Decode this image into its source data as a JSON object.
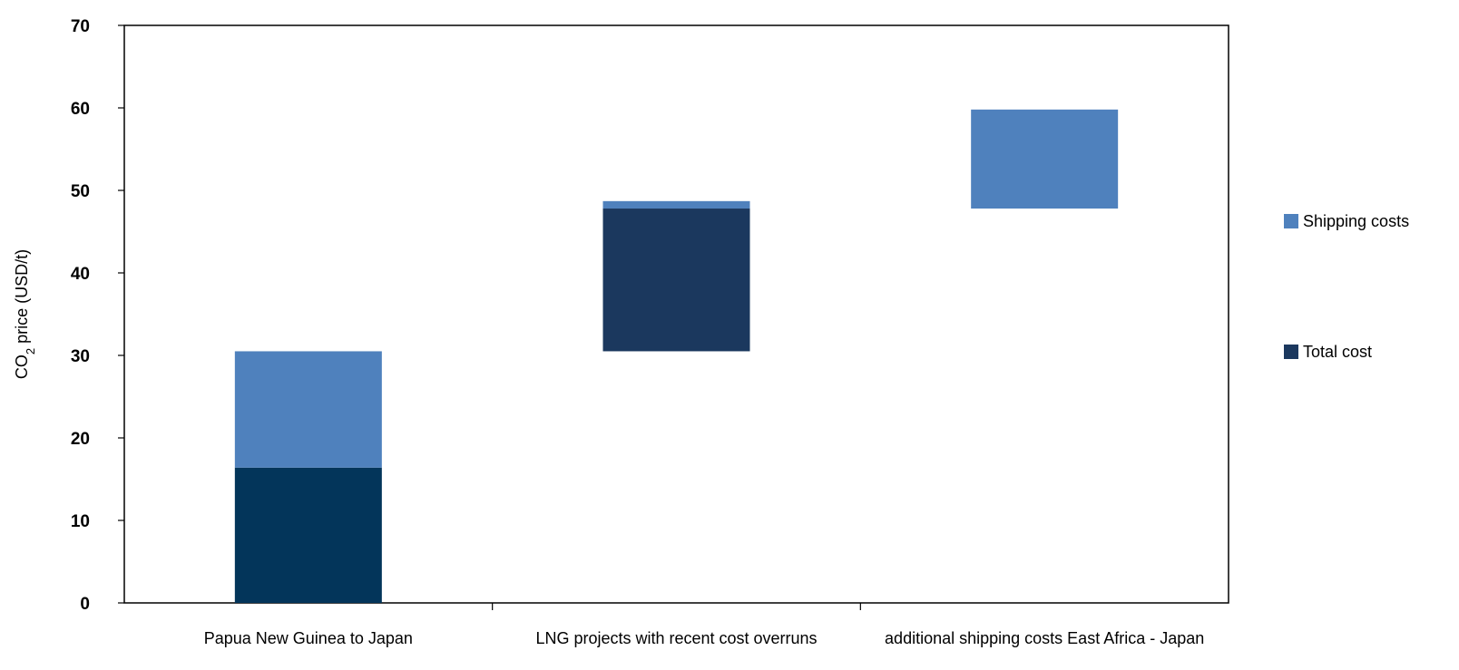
{
  "colors": {
    "shipping": "#4f81bd",
    "total_cost_primary": "#03355a",
    "total_cost_secondary": "#1b385e",
    "axis": "#000000",
    "background": "#ffffff"
  },
  "chart_data": {
    "type": "bar",
    "subtype": "waterfall-stacked",
    "title": "",
    "xlabel": "",
    "ylabel_main": "CO",
    "ylabel_sub": "2",
    "ylabel_rest": " price (USD/t)",
    "ylim": [
      0,
      70
    ],
    "yticks": [
      0,
      10,
      20,
      30,
      40,
      50,
      60,
      70
    ],
    "grid": false,
    "legend_position": "right",
    "categories": [
      "Papua New Guinea to Japan",
      "LNG projects with recent cost overruns",
      "additional shipping costs East Africa - Japan"
    ],
    "segments": [
      {
        "category": 0,
        "series": "Total cost",
        "from": 0,
        "to": 16.4,
        "color_key": "total_cost_primary"
      },
      {
        "category": 0,
        "series": "Shipping costs",
        "from": 16.4,
        "to": 30.5,
        "color_key": "shipping"
      },
      {
        "category": 1,
        "series": "Total cost",
        "from": 30.5,
        "to": 47.8,
        "color_key": "total_cost_secondary"
      },
      {
        "category": 1,
        "series": "Shipping costs",
        "from": 47.8,
        "to": 48.7,
        "color_key": "shipping"
      },
      {
        "category": 2,
        "series": "Shipping costs",
        "from": 47.8,
        "to": 59.8,
        "color_key": "shipping"
      }
    ],
    "legend": [
      {
        "name": "Shipping costs",
        "color_key": "shipping"
      },
      {
        "name": "Total cost",
        "color_key": "total_cost_secondary"
      }
    ]
  }
}
